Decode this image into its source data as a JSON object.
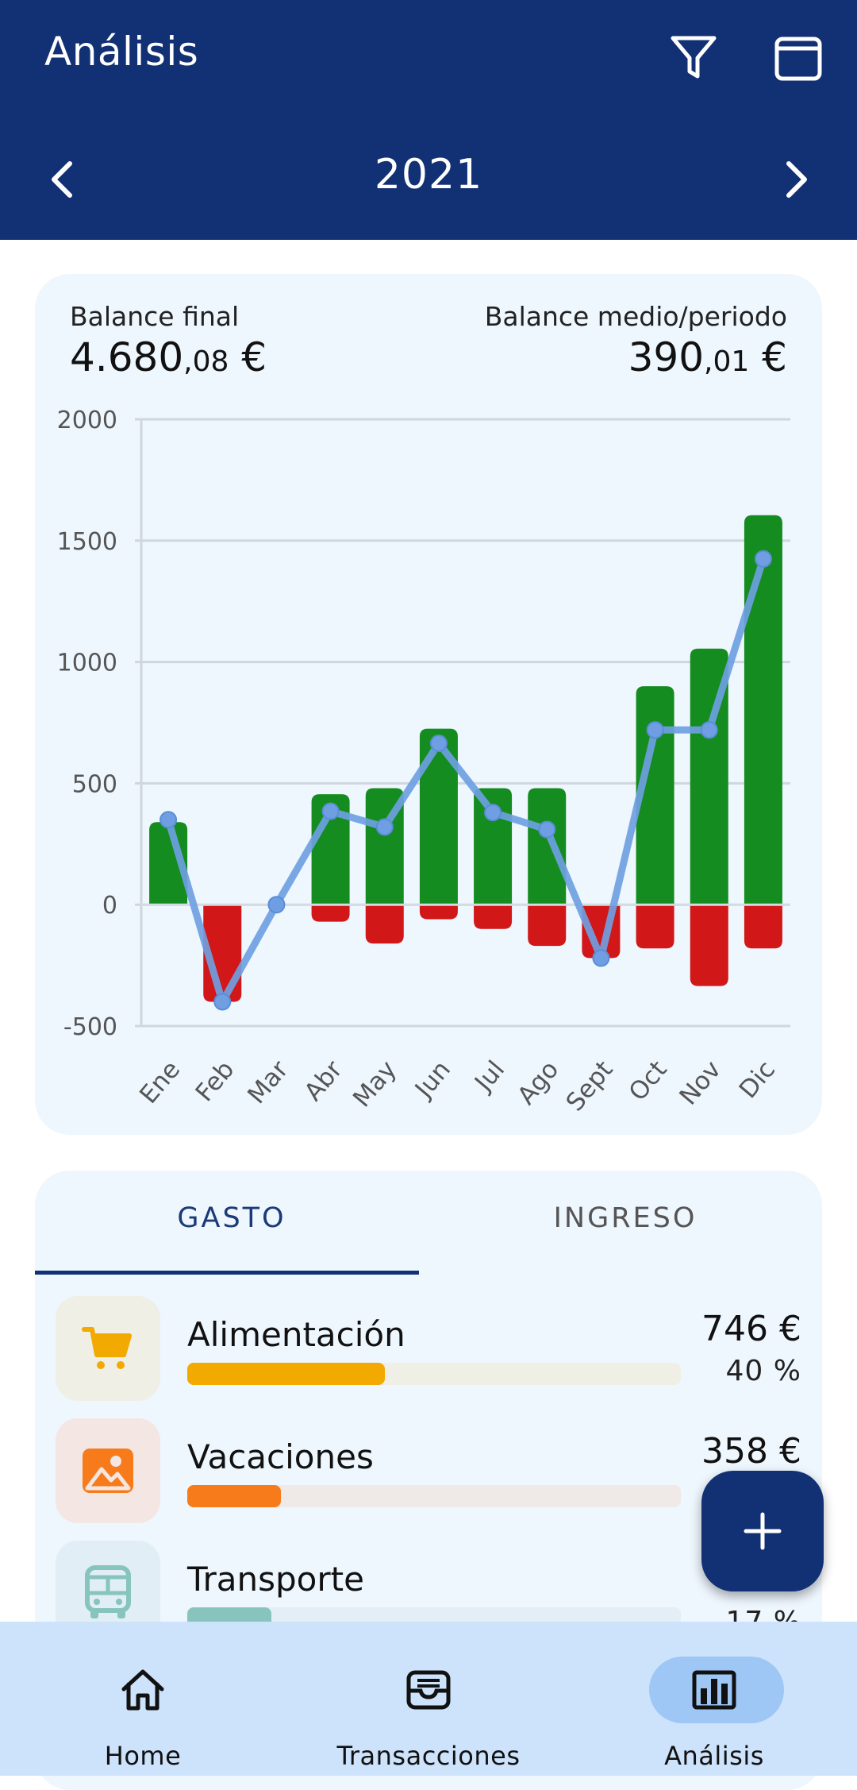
{
  "appbar": {
    "title": "Análisis",
    "filter_icon": "filter-icon",
    "calendar_icon": "calendar-icon",
    "year": "2021",
    "prev_icon": "chevron-left-icon",
    "next_icon": "chevron-right-icon",
    "color": "#123074"
  },
  "balance": {
    "final_label": "Balance final",
    "final_int": "4.680",
    "final_dec": ",08",
    "final_currency": " €",
    "avg_label": "Balance medio/periodo",
    "avg_int": "390",
    "avg_dec": ",01",
    "avg_currency": " €"
  },
  "chart_data": {
    "type": "bar",
    "categories": [
      "Ene",
      "Feb",
      "Mar",
      "Abr",
      "May",
      "Jun",
      "Jul",
      "Ago",
      "Sept",
      "Oct",
      "Nov",
      "Dic"
    ],
    "ylim": [
      -500,
      2000
    ],
    "yticks": [
      -500,
      0,
      500,
      1000,
      1500,
      2000
    ],
    "grid": true,
    "series": [
      {
        "type": "bar",
        "color": "#148c1f",
        "values": [
          340,
          0,
          0,
          455,
          480,
          725,
          480,
          480,
          0,
          900,
          1055,
          1605
        ]
      },
      {
        "type": "bar",
        "color": "#d11717",
        "values": [
          0,
          -400,
          0,
          -70,
          -160,
          -60,
          -100,
          -170,
          -220,
          -180,
          -335,
          -180
        ]
      },
      {
        "type": "line",
        "color": "#6f9fe2",
        "values": [
          350,
          -400,
          0,
          385,
          320,
          665,
          380,
          310,
          -220,
          720,
          720,
          1425
        ]
      }
    ]
  },
  "tabs": {
    "expense": "GASTO",
    "income": "INGRESO"
  },
  "categories": [
    {
      "name": "Alimentación",
      "amount": "746 €",
      "pct": "40 %",
      "fraction": 0.4,
      "color": "#f2a900",
      "track": "#efefe6",
      "icon_bg": "#efefe6",
      "icon": "cart-icon"
    },
    {
      "name": "Vacaciones",
      "amount": "358 €",
      "pct": "",
      "fraction": 0.19,
      "color": "#f77b1a",
      "track": "#efe9e8",
      "icon_bg": "#f4e6e2",
      "icon": "image-icon"
    },
    {
      "name": "Transporte",
      "amount": "",
      "pct": "17 %",
      "fraction": 0.17,
      "color": "#87c4bd",
      "track": "#e3eef6",
      "icon_bg": "#e1eef5",
      "icon": "bus-icon"
    }
  ],
  "fab": {
    "icon": "plus-icon"
  },
  "nav": [
    {
      "label": "Home",
      "icon": "home-icon"
    },
    {
      "label": "Transacciones",
      "icon": "inbox-icon"
    },
    {
      "label": "Análisis",
      "icon": "bar-chart-icon"
    }
  ]
}
